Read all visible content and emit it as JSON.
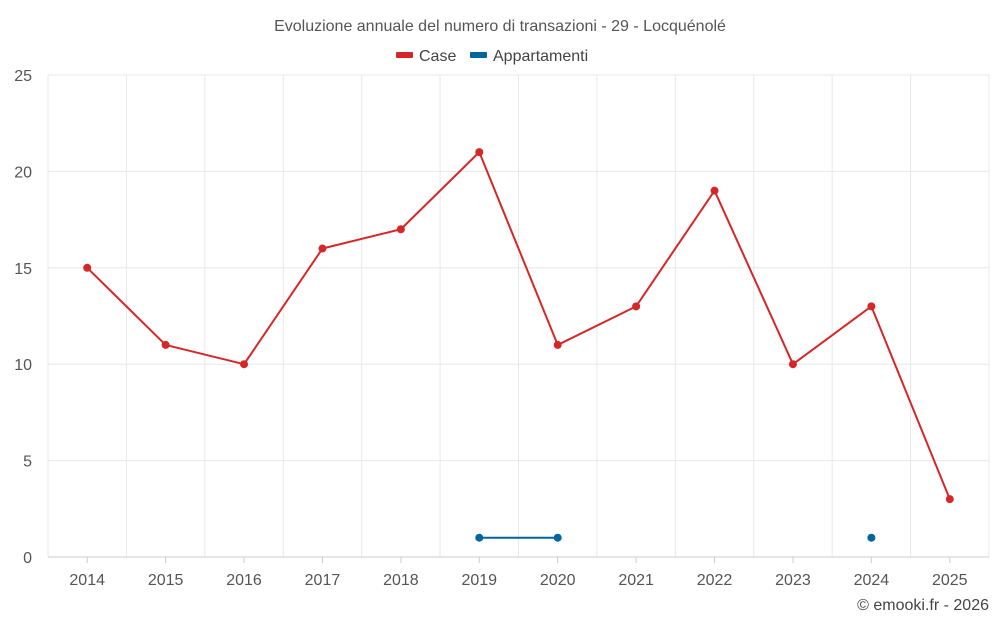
{
  "chart_data": {
    "type": "line",
    "title": "Evoluzione annuale del numero di transazioni - 29 - Locquénolé",
    "categories": [
      "2014",
      "2015",
      "2016",
      "2017",
      "2018",
      "2019",
      "2020",
      "2021",
      "2022",
      "2023",
      "2024",
      "2025"
    ],
    "series": [
      {
        "name": "Case",
        "color": "#d62728",
        "values": [
          15,
          11,
          10,
          16,
          17,
          21,
          11,
          13,
          19,
          10,
          13,
          3
        ]
      },
      {
        "name": "Appartamenti",
        "color": "#0066a1",
        "values": [
          null,
          null,
          null,
          null,
          null,
          1,
          1,
          null,
          null,
          null,
          1,
          null
        ]
      }
    ],
    "ylim": [
      0,
      25
    ],
    "yticks": [
      "0",
      "5",
      "10",
      "15",
      "20",
      "25"
    ],
    "xlabel": "",
    "ylabel": "",
    "grid": true,
    "legend": "top-center"
  },
  "credit": "© emooki.fr - 2026"
}
